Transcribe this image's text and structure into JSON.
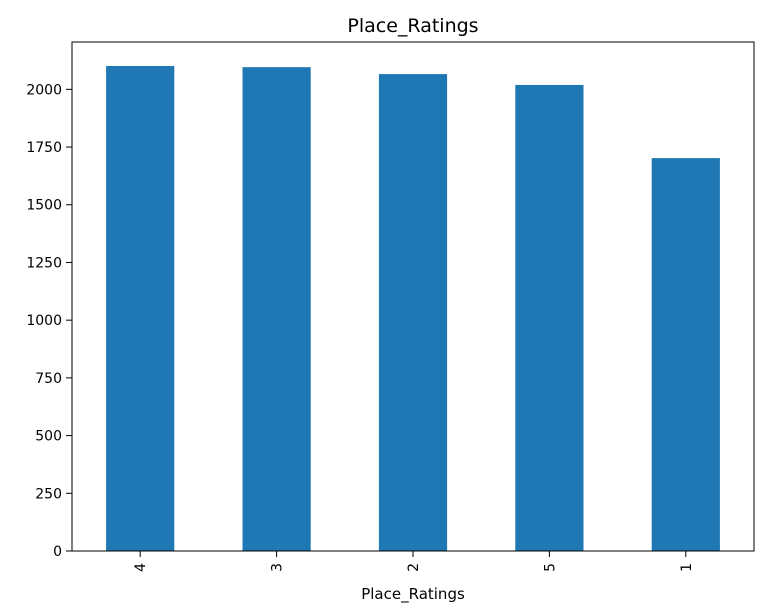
{
  "chart_data": {
    "type": "bar",
    "title": "Place_Ratings",
    "xlabel": "Place_Ratings",
    "ylabel": "",
    "categories": [
      "4",
      "3",
      "2",
      "5",
      "1"
    ],
    "values": [
      2101,
      2096,
      2066,
      2019,
      1702
    ],
    "ylim": [
      0,
      2205
    ],
    "yticks": [
      0,
      250,
      500,
      750,
      1000,
      1250,
      1500,
      1750,
      2000
    ],
    "ytick_labels": [
      "0",
      "250",
      "500",
      "750",
      "1000",
      "1250",
      "1500",
      "1750",
      "2000"
    ],
    "bar_color": "#1f77b4",
    "grid": false,
    "legend": "none",
    "xtick_rotation": 90
  }
}
